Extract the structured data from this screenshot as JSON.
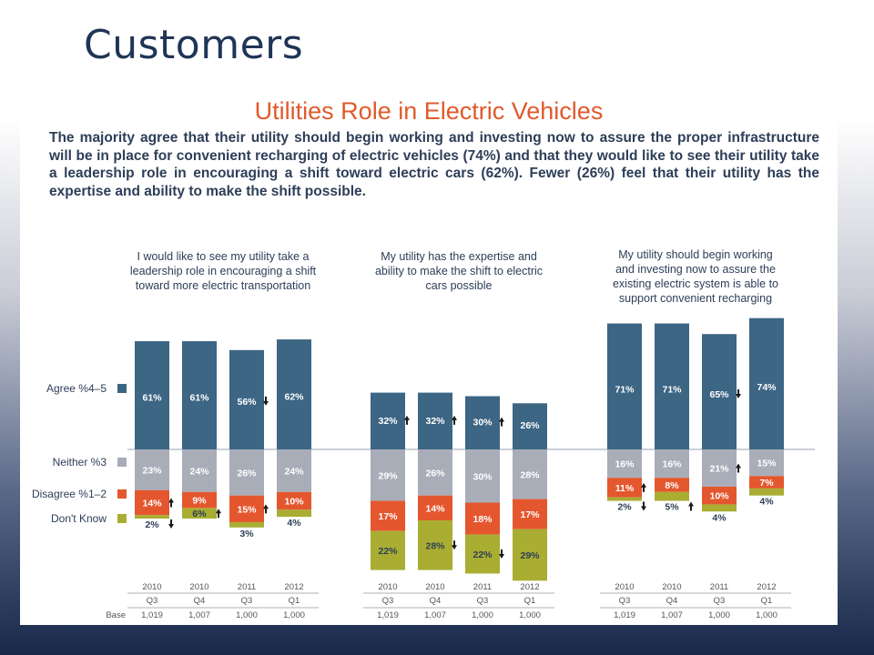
{
  "slide": {
    "title": "Customers"
  },
  "chart_data": {
    "type": "bar",
    "title": "Utilities Role in Electric Vehicles",
    "subtitle": "The majority agree that their utility should begin working and investing now to assure the proper infrastructure will be in place for convenient recharging of electric vehicles (74%) and that they would like to see their utility take a leadership role in encouraging a shift toward electric cars (62%).  Fewer (26%) feel that their utility has the expertise and ability to make the shift possible.",
    "legend": [
      {
        "name": "Agree %4–5",
        "color": "#3d6584"
      },
      {
        "name": "Neither %3",
        "color": "#a8adb8"
      },
      {
        "name": "Disagree %1–2",
        "color": "#e4572e"
      },
      {
        "name": "Don't Know",
        "color": "#a9ad32"
      }
    ],
    "base_label": "Base",
    "panels": [
      {
        "title": [
          "I would like to see my utility take a",
          "leadership role in encouraging a shift",
          "toward more electric transportation"
        ],
        "periods": [
          {
            "year": "2010",
            "q": "Q3",
            "base": "1,019"
          },
          {
            "year": "2010",
            "q": "Q4",
            "base": "1,007"
          },
          {
            "year": "2011",
            "q": "Q3",
            "base": "1,000"
          },
          {
            "year": "2012",
            "q": "Q1",
            "base": "1,000"
          }
        ],
        "series": [
          {
            "name": "Agree %4–5",
            "values": [
              61,
              61,
              56,
              62
            ],
            "labels": [
              "61%",
              "61%",
              "56%",
              "62%"
            ],
            "arrows": [
              "",
              "",
              "down",
              ""
            ]
          },
          {
            "name": "Neither %3",
            "values": [
              23,
              24,
              26,
              24
            ],
            "labels": [
              "23%",
              "24%",
              "26%",
              "24%"
            ],
            "arrows": [
              "",
              "",
              "",
              ""
            ]
          },
          {
            "name": "Disagree %1–2",
            "values": [
              14,
              9,
              15,
              10
            ],
            "labels": [
              "14%",
              "9%",
              "15%",
              "10%"
            ],
            "arrows": [
              "up",
              "",
              "up",
              ""
            ]
          },
          {
            "name": "Don't Know",
            "values": [
              2,
              6,
              3,
              4
            ],
            "labels": [
              "2%",
              "6%",
              "3%",
              "4%"
            ],
            "arrows": [
              "down",
              "up",
              "",
              ""
            ]
          }
        ]
      },
      {
        "title": [
          "My utility has the expertise and",
          "ability to make the shift to electric",
          "cars possible"
        ],
        "periods": [
          {
            "year": "2010",
            "q": "Q3",
            "base": "1,019"
          },
          {
            "year": "2010",
            "q": "Q4",
            "base": "1,007"
          },
          {
            "year": "2011",
            "q": "Q3",
            "base": "1,000"
          },
          {
            "year": "2012",
            "q": "Q1",
            "base": "1,000"
          }
        ],
        "series": [
          {
            "name": "Agree %4–5",
            "values": [
              32,
              32,
              30,
              26
            ],
            "labels": [
              "32%",
              "32%",
              "30%",
              "26%"
            ],
            "arrows": [
              "up",
              "up",
              "up",
              ""
            ]
          },
          {
            "name": "Neither %3",
            "values": [
              29,
              26,
              30,
              28
            ],
            "labels": [
              "29%",
              "26%",
              "30%",
              "28%"
            ],
            "arrows": [
              "",
              "",
              "",
              ""
            ]
          },
          {
            "name": "Disagree %1–2",
            "values": [
              17,
              14,
              18,
              17
            ],
            "labels": [
              "17%",
              "14%",
              "18%",
              "17%"
            ],
            "arrows": [
              "",
              "",
              "",
              ""
            ]
          },
          {
            "name": "Don't Know",
            "values": [
              22,
              28,
              22,
              29
            ],
            "labels": [
              "22%",
              "28%",
              "22%",
              "29%"
            ],
            "arrows": [
              "",
              "down",
              "down",
              ""
            ]
          }
        ]
      },
      {
        "title": [
          "My utility should begin working",
          "and investing now to assure the",
          "existing electric system is able to",
          "support convenient recharging"
        ],
        "periods": [
          {
            "year": "2010",
            "q": "Q3",
            "base": "1,019"
          },
          {
            "year": "2010",
            "q": "Q4",
            "base": "1,007"
          },
          {
            "year": "2011",
            "q": "Q3",
            "base": "1,000"
          },
          {
            "year": "2012",
            "q": "Q1",
            "base": "1,000"
          }
        ],
        "series": [
          {
            "name": "Agree %4–5",
            "values": [
              71,
              71,
              65,
              74
            ],
            "labels": [
              "71%",
              "71%",
              "65%",
              "74%"
            ],
            "arrows": [
              "",
              "",
              "down",
              ""
            ]
          },
          {
            "name": "Neither %3",
            "values": [
              16,
              16,
              21,
              15
            ],
            "labels": [
              "16%",
              "16%",
              "21%",
              "15%"
            ],
            "arrows": [
              "",
              "",
              "up",
              ""
            ]
          },
          {
            "name": "Disagree %1–2",
            "values": [
              11,
              8,
              10,
              7
            ],
            "labels": [
              "11%",
              "8%",
              "10%",
              "7%"
            ],
            "arrows": [
              "up",
              "",
              "",
              ""
            ]
          },
          {
            "name": "Don't Know",
            "values": [
              2,
              5,
              4,
              4
            ],
            "labels": [
              "2%",
              "5%",
              "4%",
              "4%"
            ],
            "arrows": [
              "down",
              "up",
              "",
              ""
            ]
          }
        ]
      }
    ]
  }
}
